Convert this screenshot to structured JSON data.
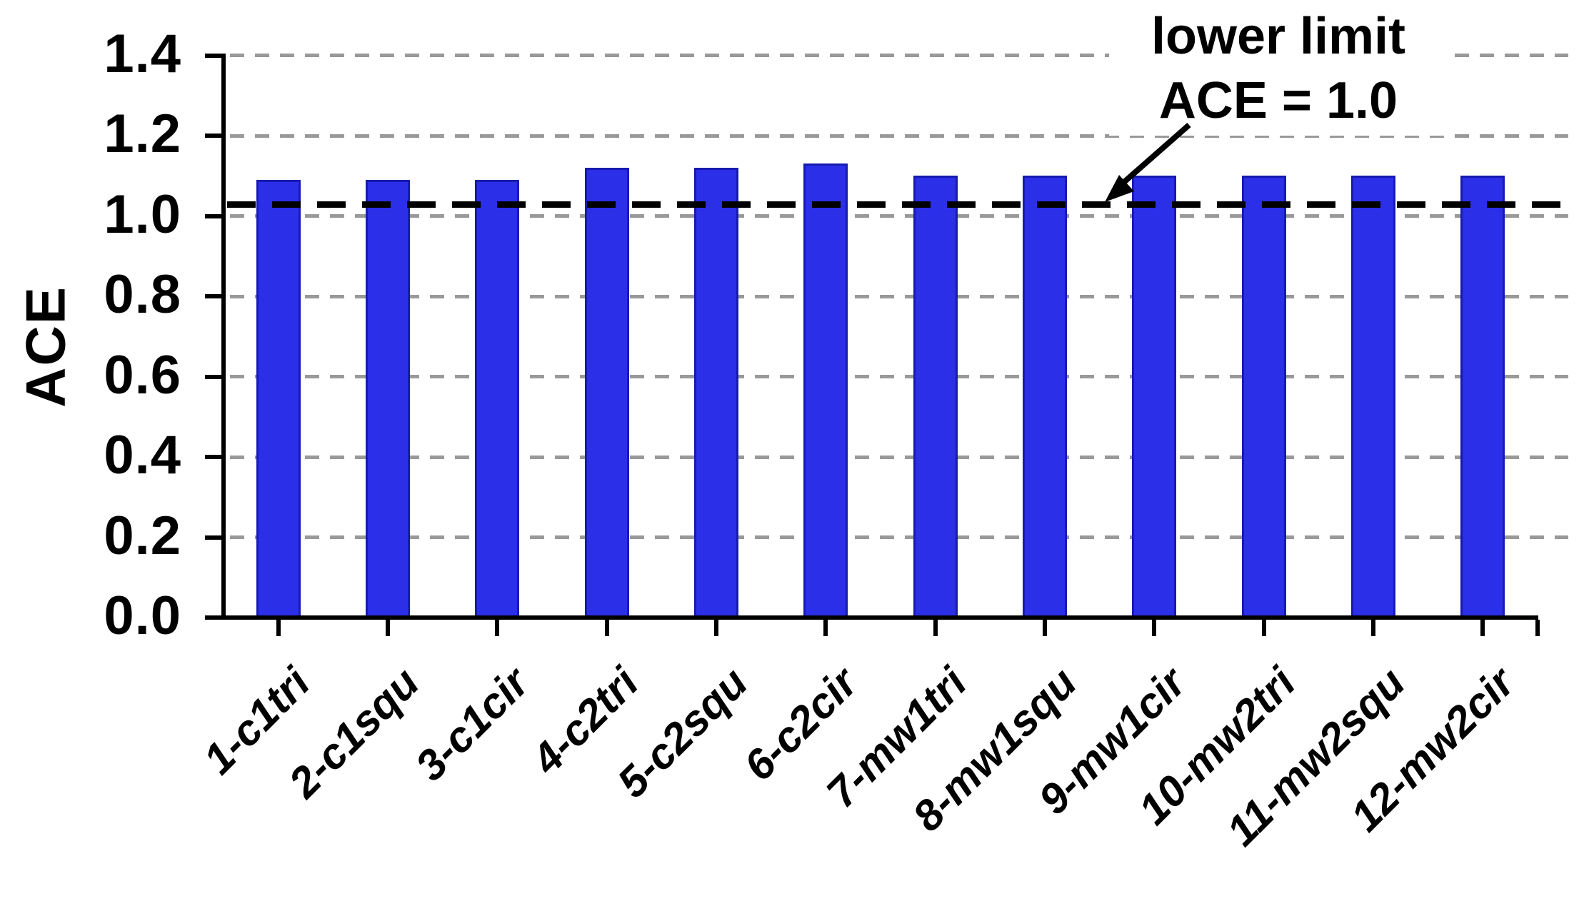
{
  "chart_data": {
    "type": "bar",
    "ylabel": "ACE",
    "categories": [
      "1-c1tri",
      "2-c1squ",
      "3-c1cir",
      "4-c2tri",
      "5-c2squ",
      "6-c2cir",
      "7-mw1tri",
      "8-mw1squ",
      "9-mw1cir",
      "10-mw2tri",
      "11-mw2squ",
      "12-mw2cir"
    ],
    "values": [
      1.09,
      1.09,
      1.09,
      1.12,
      1.12,
      1.13,
      1.1,
      1.1,
      1.1,
      1.1,
      1.1,
      1.1
    ],
    "ylim": [
      0,
      1.4
    ],
    "ytick_labels": [
      "0.0",
      "0.2",
      "0.4",
      "0.6",
      "0.8",
      "1.0",
      "1.2",
      "1.4"
    ],
    "ytick_values": [
      0.0,
      0.2,
      0.4,
      0.6,
      0.8,
      1.0,
      1.2,
      1.4
    ],
    "grid": "horizontal-dashed",
    "legend": "none",
    "annotation": {
      "line1": "lower limit",
      "line2": "ACE = 1.0",
      "has_arrow": true
    },
    "limit_line": {
      "value_shown": 1.0,
      "drawn_at": 1.028,
      "style": "dashed"
    },
    "colors": {
      "bar_fill": "#2b2fe8",
      "bar_edge": "#171bb0",
      "gridline": "#999999",
      "limit_line": "#000000",
      "axis": "#000000",
      "text": "#000000",
      "background": "#ffffff"
    }
  }
}
